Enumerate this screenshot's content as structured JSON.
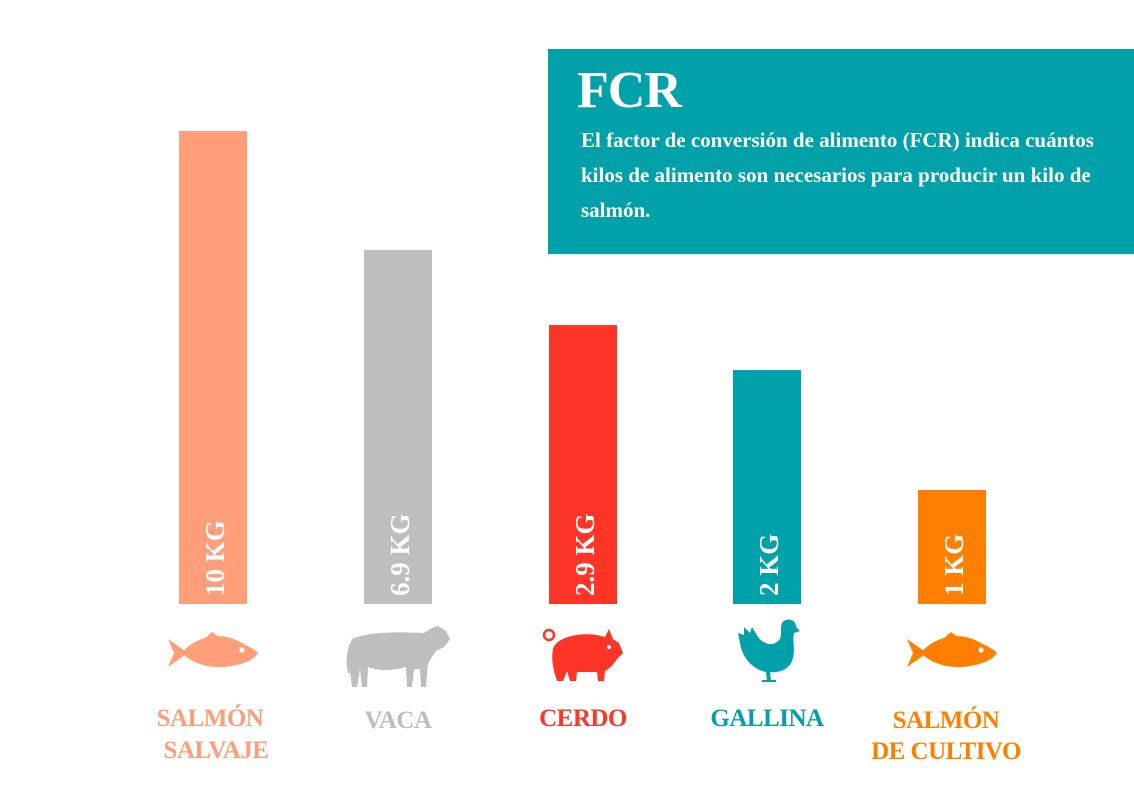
{
  "info": {
    "title": "FCR",
    "description": "El factor de conversión de alimento (FCR) indica cuántos kilos de alimento son necesarios para producir un kilo de salmón."
  },
  "chart_data": {
    "type": "bar",
    "categories": [
      "SALMÓN SALVAJE",
      "VACA",
      "CERDO",
      "GALLINA",
      "SALMÓN DE CULTIVO"
    ],
    "category_lines": [
      [
        "SALMÓN",
        "SALVAJE"
      ],
      [
        "VACA"
      ],
      [
        "CERDO"
      ],
      [
        "GALLINA"
      ],
      [
        "SALMÓN",
        "DE CULTIVO"
      ]
    ],
    "values": [
      10,
      6.9,
      2.9,
      2,
      1
    ],
    "value_labels": [
      "10 KG",
      "6.9 KG",
      "2.9 KG",
      "2 KG",
      "1 KG"
    ],
    "colors": [
      "#FF9E78",
      "#BDBEC0",
      "#FF3527",
      "#00A1A8",
      "#FF8000"
    ],
    "icons": [
      "fish-icon",
      "cow-icon",
      "pig-icon",
      "chicken-icon",
      "fish-icon"
    ],
    "axes": "none",
    "grid": false,
    "legend": "none"
  }
}
